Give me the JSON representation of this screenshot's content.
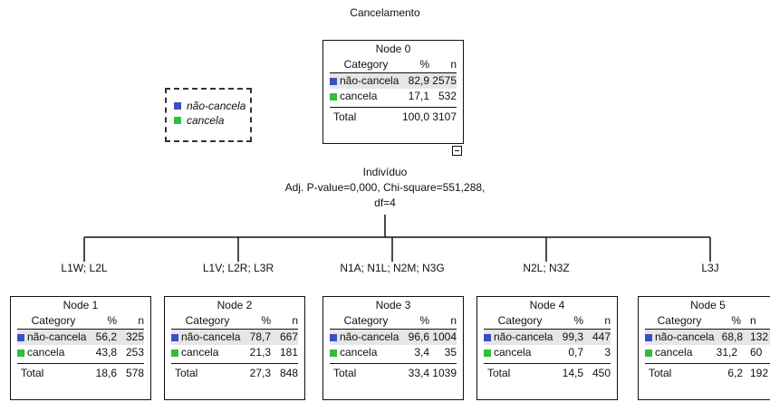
{
  "title": "Cancelamento",
  "legend": {
    "items": [
      {
        "label": "não-cancela",
        "color": "#3b4fc4"
      },
      {
        "label": "cancela",
        "color": "#2fbf3a"
      }
    ]
  },
  "table_headers": {
    "category": "Category",
    "pct": "%",
    "n": "n"
  },
  "total_label": "Total",
  "colors": {
    "nao_cancela": "#3b4fc4",
    "cancela": "#2fbf3a"
  },
  "root": {
    "title": "Node 0",
    "rows": [
      {
        "category": "não-cancela",
        "pct": "82,9",
        "n": "2575"
      },
      {
        "category": "cancela",
        "pct": "17,1",
        "n": "532"
      }
    ],
    "total": {
      "pct": "100,0",
      "n": "3107"
    }
  },
  "split": {
    "variable": "Indivíduo",
    "stats": "Adj. P-value=0,000, Chi-square=551,288,",
    "df": "df=4"
  },
  "children": [
    {
      "branch": "L1W; L2L",
      "title": "Node 1",
      "rows": [
        {
          "category": "não-cancela",
          "pct": "56,2",
          "n": "325"
        },
        {
          "category": "cancela",
          "pct": "43,8",
          "n": "253"
        }
      ],
      "total": {
        "pct": "18,6",
        "n": "578"
      }
    },
    {
      "branch": "L1V; L2R; L3R",
      "title": "Node 2",
      "rows": [
        {
          "category": "não-cancela",
          "pct": "78,7",
          "n": "667"
        },
        {
          "category": "cancela",
          "pct": "21,3",
          "n": "181"
        }
      ],
      "total": {
        "pct": "27,3",
        "n": "848"
      }
    },
    {
      "branch": "N1A; N1L; N2M; N3G",
      "title": "Node 3",
      "rows": [
        {
          "category": "não-cancela",
          "pct": "96,6",
          "n": "1004"
        },
        {
          "category": "cancela",
          "pct": "3,4",
          "n": "35"
        }
      ],
      "total": {
        "pct": "33,4",
        "n": "1039"
      }
    },
    {
      "branch": "N2L; N3Z",
      "title": "Node 4",
      "rows": [
        {
          "category": "não-cancela",
          "pct": "99,3",
          "n": "447"
        },
        {
          "category": "cancela",
          "pct": "0,7",
          "n": "3"
        }
      ],
      "total": {
        "pct": "14,5",
        "n": "450"
      }
    },
    {
      "branch": "L3J",
      "title": "Node 5",
      "rows": [
        {
          "category": "não-cancela",
          "pct": "68,8",
          "n": "132"
        },
        {
          "category": "cancela",
          "pct": "31,2",
          "n": "60"
        }
      ],
      "total": {
        "pct": "6,2",
        "n": "192"
      }
    }
  ]
}
